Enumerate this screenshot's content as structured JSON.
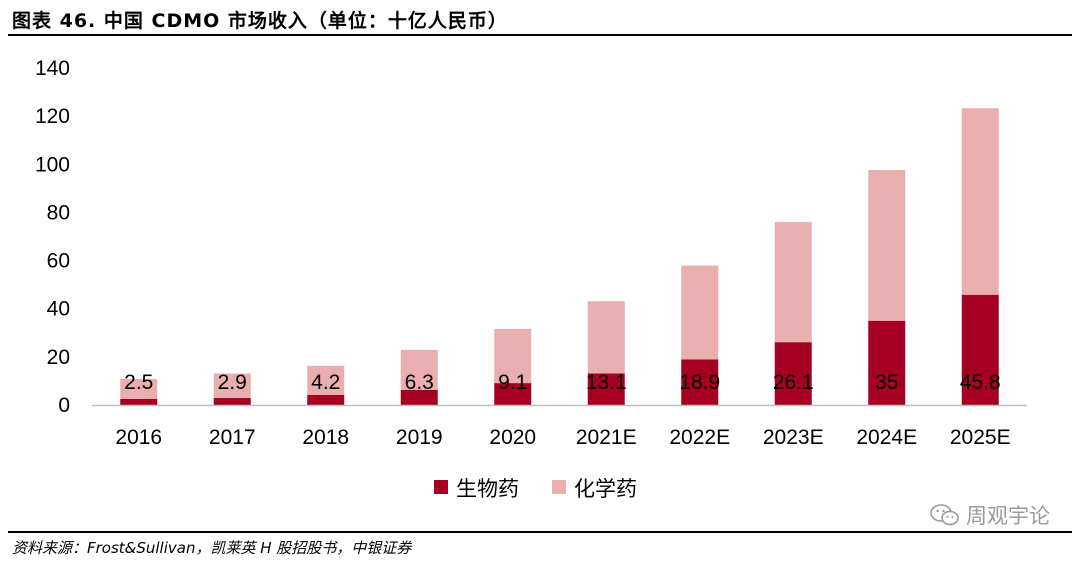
{
  "title": "图表 46. 中国 CDMO 市场收入（单位：十亿人民币）",
  "source": "资料来源：Frost&Sullivan，凯莱英 H 股招股书，中银证券",
  "watermark": "周观宇论",
  "colors": {
    "bio": "#a50021",
    "chem": "#e9aeae",
    "axis": "#bfbfbf"
  },
  "chart_data": {
    "type": "bar",
    "stacked": true,
    "categories": [
      "2016",
      "2017",
      "2018",
      "2019",
      "2020",
      "2021E",
      "2022E",
      "2023E",
      "2024E",
      "2025E"
    ],
    "series": [
      {
        "name": "生物药",
        "values": [
          2.5,
          2.9,
          4.2,
          6.3,
          9.1,
          13.1,
          18.9,
          26.1,
          35,
          45.8
        ],
        "labels": [
          "2.5",
          "2.9",
          "4.2",
          "6.3",
          "9.1",
          "13.1",
          "18.9",
          "26.1",
          "35",
          "45.8"
        ]
      },
      {
        "name": "化学药",
        "values": [
          8.3,
          10.2,
          12.1,
          16.6,
          22.5,
          30.0,
          39.0,
          49.9,
          62.6,
          77.5
        ]
      }
    ],
    "ylim": [
      0,
      140
    ],
    "yticks": [
      "0",
      "20",
      "40",
      "60",
      "80",
      "100",
      "120",
      "140"
    ],
    "legend_position": "bottom-center",
    "grid": false
  }
}
